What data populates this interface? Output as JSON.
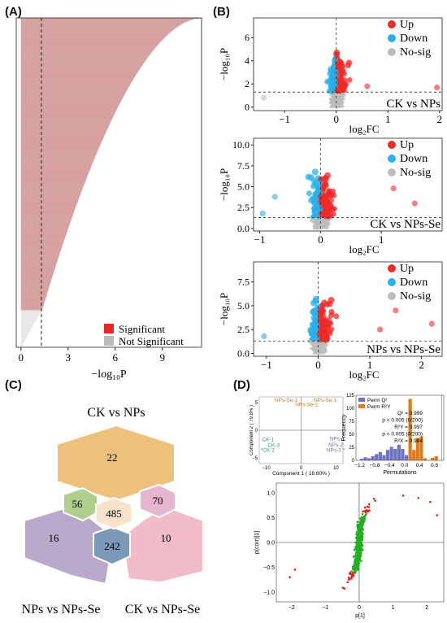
{
  "panels": {
    "A": "(A)",
    "B": "(B)",
    "C": "(C)",
    "D": "(D)"
  },
  "chart_data": [
    {
      "panel": "A",
      "type": "bar",
      "orientation": "horizontal",
      "note": "sorted -log10P for every compound; bars above threshold significant",
      "xlim": [
        -0.3,
        11.5
      ],
      "xticks": [
        0,
        3,
        6,
        9
      ],
      "xlabel": "−log₁₀P",
      "threshold": 1.3,
      "n_bars": 400,
      "n_not_significant": 45,
      "max_value": 11.4,
      "colors": {
        "significant": "#d6a1a1",
        "not_significant": "#e8e8e8"
      },
      "legend": [
        {
          "label": "Significant",
          "color": "#e32a2a"
        },
        {
          "label": "Not Significant",
          "color": "#bbbbbb"
        }
      ]
    },
    {
      "panel": "B1",
      "type": "scatter",
      "subtitle": "CK vs NPs",
      "xlabel": "log₂FC",
      "ylabel": "−log₁₀P",
      "xlim": [
        -1.6,
        2.05
      ],
      "ylim": [
        -0.3,
        7.7
      ],
      "xticks": [
        -1,
        0,
        1,
        2
      ],
      "yticks": [
        0,
        2,
        4,
        6
      ],
      "threshold": 1.3,
      "legend": [
        "Up",
        "Down",
        "No-sig"
      ],
      "colors": {
        "up": "#ee2a2a",
        "down": "#2ab0e8",
        "nosig": "#bcbcbc"
      },
      "xspread": [
        0.4,
        0.3
      ],
      "outliers": [
        [
          1.95,
          1.7
        ],
        [
          -1.4,
          0.8
        ],
        [
          0.6,
          1.8
        ]
      ]
    },
    {
      "panel": "B2",
      "type": "scatter",
      "subtitle": "CK vs NPs-Se",
      "xlabel": "log₂FC",
      "ylabel": "−log₁₀P",
      "xlim": [
        -1.1,
        2.0
      ],
      "ylim": [
        -0.3,
        10.8
      ],
      "xticks": [
        -1,
        0,
        1
      ],
      "yticks": [
        0,
        2.5,
        5,
        7.5,
        10
      ],
      "ytick_labels": [
        "0.0",
        "2.5",
        "5.0",
        "7.5",
        "10.0"
      ],
      "threshold": 1.3,
      "legend": [
        "Up",
        "Down",
        "No-sig"
      ],
      "colors": {
        "up": "#ee2a2a",
        "down": "#2ab0e8",
        "nosig": "#bcbcbc"
      },
      "xspread": [
        0.5,
        0.35
      ],
      "outliers": [
        [
          1.55,
          3.0
        ],
        [
          1.2,
          4.8
        ],
        [
          -0.95,
          1.8
        ],
        [
          -0.75,
          3.8
        ]
      ]
    },
    {
      "panel": "B3",
      "type": "scatter",
      "subtitle": "NPs vs NPs-Se",
      "xlabel": "log₂FC",
      "ylabel": "−log₁₀P",
      "xlim": [
        -1.25,
        2.4
      ],
      "ylim": [
        -0.3,
        9.6
      ],
      "xticks": [
        -1,
        0,
        1,
        2
      ],
      "yticks": [
        0,
        2.5,
        5,
        7.5
      ],
      "ytick_labels": [
        "0.0",
        "2.5",
        "5.0",
        "7.5"
      ],
      "threshold": 1.3,
      "legend": [
        "Up",
        "Down",
        "No-sig"
      ],
      "colors": {
        "up": "#ee2a2a",
        "down": "#2ab0e8",
        "nosig": "#bcbcbc"
      },
      "xspread": [
        0.55,
        0.35
      ],
      "outliers": [
        [
          2.2,
          3.1
        ],
        [
          1.5,
          4.5
        ],
        [
          -1.05,
          1.8
        ],
        [
          1.2,
          2.5
        ]
      ]
    },
    {
      "panel": "C",
      "type": "venn",
      "sets": [
        "CK vs NPs",
        "NPs vs NPs-Se",
        "CK vs NPs-Se"
      ],
      "regions": [
        {
          "set": "CK vs NPs only",
          "value": 22,
          "color": "#edc07c"
        },
        {
          "set": "NPs vs NPs-Se only",
          "value": 16,
          "color": "#b9a8ca"
        },
        {
          "set": "CK vs NPs-Se only",
          "value": 10,
          "color": "#f1bcc7"
        },
        {
          "set": "CK vs NPs ∩ NPs vs NPs-Se",
          "value": 56,
          "color": "#aed08c"
        },
        {
          "set": "CK vs NPs ∩ CK vs NPs-Se",
          "value": 70,
          "color": "#e6b6cf"
        },
        {
          "set": "NPs vs NPs-Se ∩ CK vs NPs-Se",
          "value": 242,
          "color": "#7d99b9"
        },
        {
          "set": "all three",
          "value": 485,
          "color": "#f9e2cc"
        }
      ]
    },
    {
      "panel": "D1",
      "type": "scatter",
      "xlabel": "Component 1 ( 18.60% )",
      "ylabel": "Component 2 ( 79.8% )",
      "xlim": [
        -12,
        12
      ],
      "ylim": [
        -6,
        6
      ],
      "xticks": [
        -10,
        0,
        10
      ],
      "yticks": [
        -5,
        0,
        5
      ],
      "groups": [
        {
          "name": "NPs-Se",
          "color": "#c8781e",
          "labels": [
            {
              "t": "NPs-Se-3",
              "x": -7.6,
              "y": 5.1
            },
            {
              "t": "NPs-Se-1",
              "x": 3.6,
              "y": 5.1
            },
            {
              "t": "NPs-Se-2",
              "x": -1.7,
              "y": 4.3
            }
          ]
        },
        {
          "name": "CK",
          "color": "#2a9a70",
          "labels": [
            {
              "t": "CK-1",
              "x": -11.2,
              "y": -2.0
            },
            {
              "t": "CK-3",
              "x": -9.6,
              "y": -3.0
            },
            {
              "t": "*CK-2",
              "x": -11.6,
              "y": -3.9
            }
          ]
        },
        {
          "name": "NPs",
          "color": "#6878a8",
          "labels": [
            {
              "t": "NPs-1",
              "x": 8.2,
              "y": -1.8
            },
            {
              "t": "NPs-2",
              "x": 7.8,
              "y": -2.9
            },
            {
              "t": "NPs-3 *",
              "x": 7.3,
              "y": -3.9
            }
          ]
        }
      ]
    },
    {
      "panel": "D2",
      "type": "bar",
      "ylabel": "Frequency",
      "xlabel": "Permutations",
      "xlim": [
        -1.3,
        1.05
      ],
      "ylim": [
        0,
        125
      ],
      "xticks": [
        -1.2,
        -0.8,
        -0.4,
        0.0,
        0.4,
        0.8
      ],
      "xtick_labels": [
        "−1.2",
        "−0.8",
        "−0.4",
        "0.0",
        "0.4",
        "0.8"
      ],
      "yticks": [
        0,
        25,
        50,
        75,
        100,
        125
      ],
      "legend": [
        {
          "label": "Perm Q²",
          "color": "#7272c4"
        },
        {
          "label": "Perm R²Y",
          "color": "#e07a1c"
        }
      ],
      "annotations": [
        "Q² = 0.999",
        "p < 0.005 (0/200)",
        "R²Y = 0.997",
        "p < 0.005 (0/200)",
        "R²X = 0.984"
      ],
      "series": [
        {
          "name": "Perm Q²",
          "color": "#7272c4",
          "bins": [
            [
              -1.15,
              3
            ],
            [
              -1.05,
              6
            ],
            [
              -0.95,
              4
            ],
            [
              -0.85,
              8
            ],
            [
              -0.75,
              12
            ],
            [
              -0.65,
              16
            ],
            [
              -0.55,
              10
            ],
            [
              -0.45,
              20
            ],
            [
              -0.35,
              26
            ],
            [
              -0.25,
              22
            ],
            [
              -0.15,
              30
            ],
            [
              -0.05,
              22
            ],
            [
              0.05,
              10
            ],
            [
              0.15,
              5
            ]
          ]
        },
        {
          "name": "Perm R²Y",
          "color": "#e07a1c",
          "bins": [
            [
              0.15,
              118
            ],
            [
              0.25,
              20
            ],
            [
              0.35,
              43
            ],
            [
              0.45,
              46
            ],
            [
              0.55,
              4
            ],
            [
              0.75,
              5
            ],
            [
              0.85,
              8
            ]
          ]
        }
      ],
      "reference_lines": [
        0.997,
        0.999
      ]
    },
    {
      "panel": "D3",
      "type": "scatter",
      "xlabel": "p[1]",
      "ylabel": "p(corr)[1]",
      "xlim": [
        -2.45,
        2.5
      ],
      "ylim": [
        -1.2,
        1.2
      ],
      "xticks": [
        -2,
        -1,
        0,
        1,
        2
      ],
      "yticks": [
        -1.0,
        -0.5,
        0.0,
        0.5,
        1.0
      ],
      "ytick_labels": [
        "−1.0",
        "−0.5",
        "0.0",
        "0.5",
        "1.0"
      ],
      "xtick_labels": [
        "−2",
        "−1",
        "0",
        "1",
        "2"
      ],
      "colors": {
        "vip_high": "#e02020",
        "vip_low": "#22b022"
      },
      "outliers": [
        [
          -1.9,
          -0.55
        ],
        [
          -2.05,
          -0.7
        ],
        [
          1.75,
          0.9
        ],
        [
          2.1,
          0.82
        ],
        [
          2.3,
          0.55
        ],
        [
          1.3,
          0.95
        ]
      ]
    }
  ]
}
